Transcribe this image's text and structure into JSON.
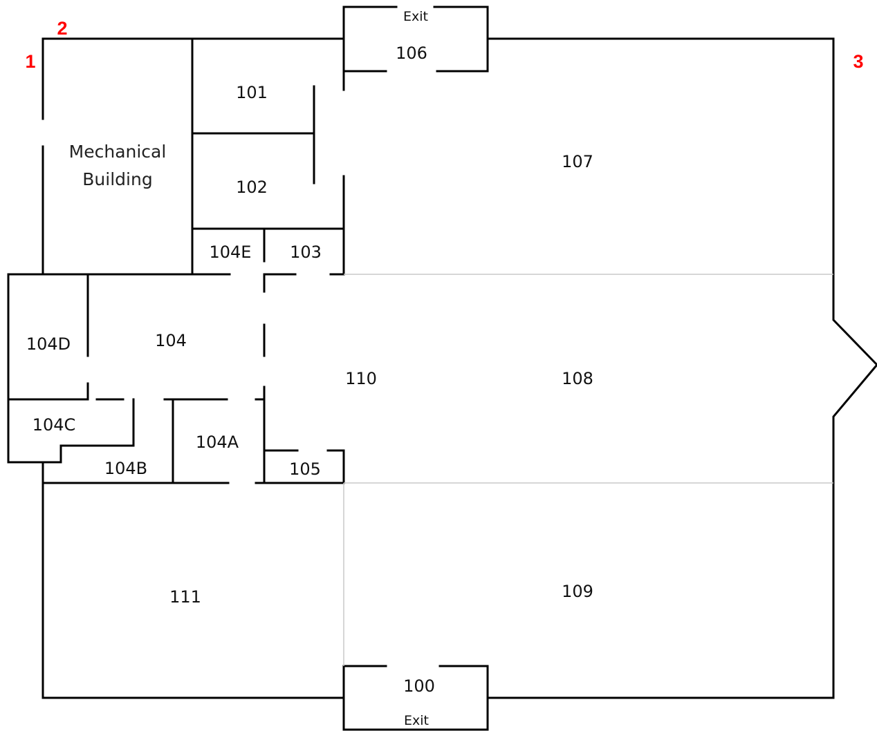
{
  "corner_markers": [
    {
      "id": "c1",
      "text": "1"
    },
    {
      "id": "c2",
      "text": "2"
    },
    {
      "id": "c3",
      "text": "3"
    }
  ],
  "marker_color": "#ff0000",
  "mechanical": {
    "line1": "Mechanical",
    "line2": "Building"
  },
  "rooms": {
    "r100": "100",
    "r101": "101",
    "r102": "102",
    "r103": "103",
    "r104": "104",
    "r104A": "104A",
    "r104B": "104B",
    "r104C": "104C",
    "r104D": "104D",
    "r104E": "104E",
    "r105": "105",
    "r106": "106",
    "r107": "107",
    "r108": "108",
    "r109": "109",
    "r110": "110",
    "r111": "111"
  },
  "exits": {
    "top": "Exit",
    "bottom": "Exit"
  }
}
